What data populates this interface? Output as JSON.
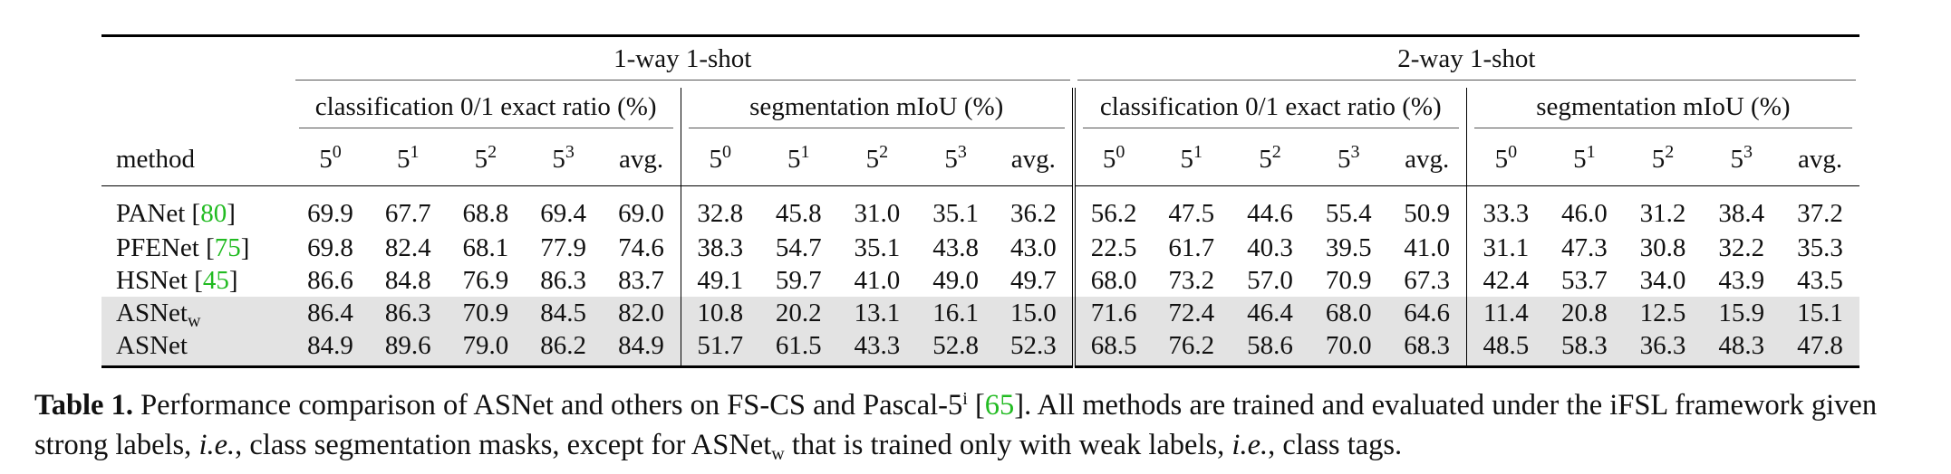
{
  "table": {
    "groups": [
      {
        "label": "1-way 1-shot",
        "subgroups": [
          "classification 0/1 exact ratio (%)",
          "segmentation mIoU (%)"
        ]
      },
      {
        "label": "2-way 1-shot",
        "subgroups": [
          "classification 0/1 exact ratio (%)",
          "segmentation mIoU (%)"
        ]
      }
    ],
    "method_header": "method",
    "fold_base": "5",
    "fold_exponents": [
      "0",
      "1",
      "2",
      "3"
    ],
    "avg_label": "avg.",
    "rows": [
      {
        "name": "PANet",
        "sub": "",
        "ref": "80",
        "values": [
          "69.9",
          "67.7",
          "68.8",
          "69.4",
          "69.0",
          "32.8",
          "45.8",
          "31.0",
          "35.1",
          "36.2",
          "56.2",
          "47.5",
          "44.6",
          "55.4",
          "50.9",
          "33.3",
          "46.0",
          "31.2",
          "38.4",
          "37.2"
        ],
        "bold": []
      },
      {
        "name": "PFENet",
        "sub": "",
        "ref": "75",
        "values": [
          "69.8",
          "82.4",
          "68.1",
          "77.9",
          "74.6",
          "38.3",
          "54.7",
          "35.1",
          "43.8",
          "43.0",
          "22.5",
          "61.7",
          "40.3",
          "39.5",
          "41.0",
          "31.1",
          "47.3",
          "30.8",
          "32.2",
          "35.3"
        ],
        "bold": []
      },
      {
        "name": "HSNet",
        "sub": "",
        "ref": "45",
        "values": [
          "86.6",
          "84.8",
          "76.9",
          "86.3",
          "83.7",
          "49.1",
          "59.7",
          "41.0",
          "49.0",
          "49.7",
          "68.0",
          "73.2",
          "57.0",
          "70.9",
          "67.3",
          "42.4",
          "53.7",
          "34.0",
          "43.9",
          "43.5"
        ],
        "bold": [
          0,
          3,
          13
        ]
      },
      {
        "name": "ASNet",
        "sub": "w",
        "ref": "",
        "values": [
          "86.4",
          "86.3",
          "70.9",
          "84.5",
          "82.0",
          "10.8",
          "20.2",
          "13.1",
          "16.1",
          "15.0",
          "71.6",
          "72.4",
          "46.4",
          "68.0",
          "64.6",
          "11.4",
          "20.8",
          "12.5",
          "15.9",
          "15.1"
        ],
        "bold": [
          10
        ]
      },
      {
        "name": "ASNet",
        "sub": "",
        "ref": "",
        "values": [
          "84.9",
          "89.6",
          "79.0",
          "86.2",
          "84.9",
          "51.7",
          "61.5",
          "43.3",
          "52.8",
          "52.3",
          "68.5",
          "76.2",
          "58.6",
          "70.0",
          "68.3",
          "48.5",
          "58.3",
          "36.3",
          "48.3",
          "47.8"
        ],
        "bold": [
          1,
          2,
          4,
          5,
          6,
          7,
          8,
          9,
          11,
          12,
          14,
          15,
          16,
          17,
          18,
          19
        ]
      }
    ],
    "shaded_rows": [
      3,
      4
    ]
  },
  "caption": {
    "label": "Table 1.",
    "t1": " Performance comparison of ASNet and others on FS-CS and Pascal-5",
    "sup": "i",
    "t2": " [",
    "ref": "65",
    "t3": "]. All methods are trained and evaluated under the iFSL framework given strong labels, ",
    "ie1": "i.e.",
    "t4": ", class segmentation masks, except for ASNet",
    "sub": "w",
    "t5": " that is trained only with weak labels, ",
    "ie2": "i.e.",
    "t6": ", class tags."
  }
}
